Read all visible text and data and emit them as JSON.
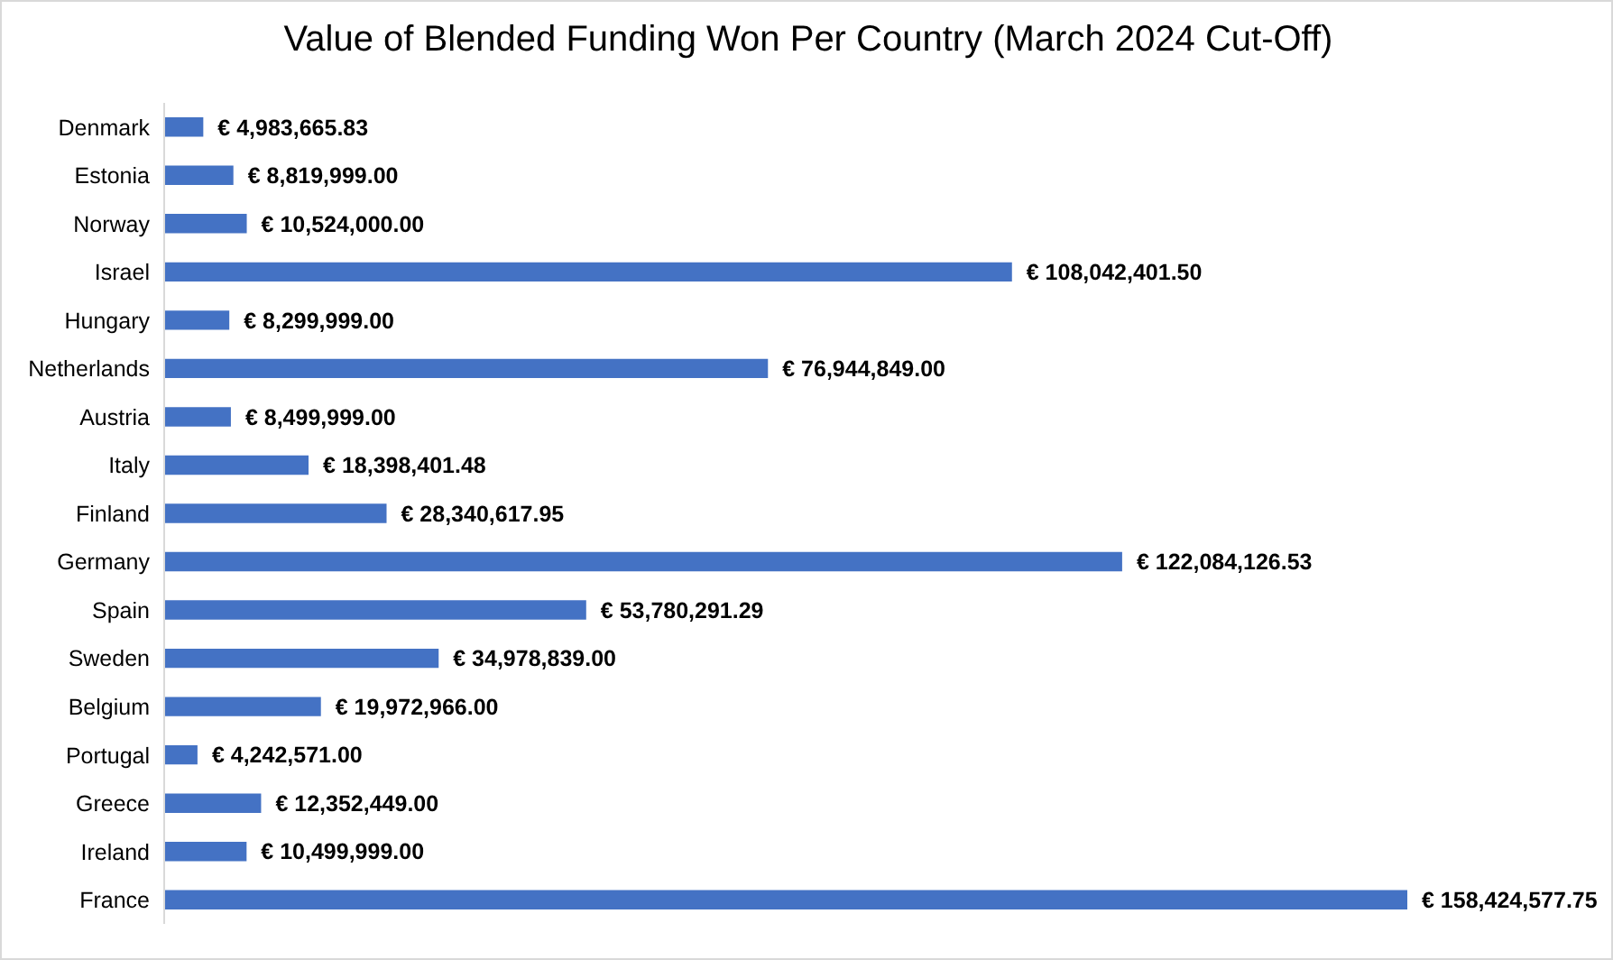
{
  "chart_data": {
    "type": "bar",
    "orientation": "horizontal",
    "title": "Value of Blended Funding Won Per Country (March 2024 Cut-Off)",
    "categories": [
      "Denmark",
      "Estonia",
      "Norway",
      "Israel",
      "Hungary",
      "Netherlands",
      "Austria",
      "Italy",
      "Finland",
      "Germany",
      "Spain",
      "Sweden",
      "Belgium",
      "Portugal",
      "Greece",
      "Ireland",
      "France"
    ],
    "values": [
      4983665.83,
      8819999.0,
      10524000.0,
      108042401.5,
      8299999.0,
      76944849.0,
      8499999.0,
      18398401.48,
      28340617.95,
      122084126.53,
      53780291.29,
      34978839.0,
      19972966.0,
      4242571.0,
      12352449.0,
      10499999.0,
      158424577.75
    ],
    "value_labels": [
      "€ 4,983,665.83",
      "€ 8,819,999.00",
      "€ 10,524,000.00",
      "€ 108,042,401.50",
      "€ 8,299,999.00",
      "€ 76,944,849.00",
      "€ 8,499,999.00",
      "€ 18,398,401.48",
      "€ 28,340,617.95",
      "€ 122,084,126.53",
      "€ 53,780,291.29",
      "€ 34,978,839.00",
      "€ 19,972,966.00",
      "€ 4,242,571.00",
      "€ 12,352,449.00",
      "€ 10,499,999.00",
      "€ 158,424,577.75"
    ],
    "color": "#4472c4",
    "grid": false,
    "legend": false,
    "tick_labels": "y"
  }
}
